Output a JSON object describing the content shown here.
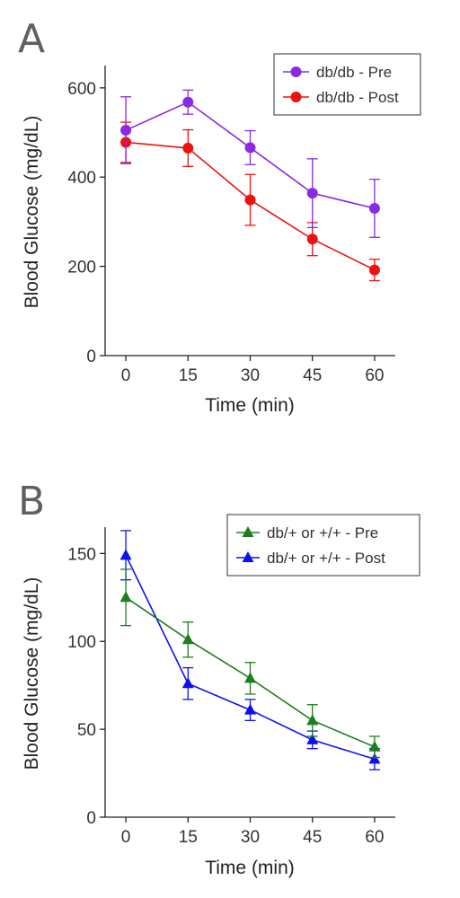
{
  "chart_data": [
    {
      "panel": "A",
      "type": "line",
      "xlabel": "Time (min)",
      "ylabel": "Blood Glucose (mg/dL)",
      "x": [
        0,
        15,
        30,
        45,
        60
      ],
      "xticks": [
        "0",
        "15",
        "30",
        "45",
        "60"
      ],
      "xlim": [
        -5,
        65
      ],
      "yticks": [
        "0",
        "200",
        "400",
        "600"
      ],
      "ylim": [
        0,
        650
      ],
      "marker": "circle",
      "legend_position": "top-right",
      "grid": false,
      "series": [
        {
          "name": "db/db - Pre",
          "color": "#8a2be2",
          "values": [
            505,
            568,
            466,
            364,
            330
          ],
          "error": [
            75,
            27,
            38,
            77,
            65
          ]
        },
        {
          "name": "db/db - Post",
          "color": "#ee1111",
          "values": [
            478,
            465,
            349,
            261,
            192
          ],
          "error": [
            45,
            41,
            57,
            37,
            24
          ]
        }
      ]
    },
    {
      "panel": "B",
      "type": "line",
      "xlabel": "Time (min)",
      "ylabel": "Blood Glucose (mg/dL)",
      "x": [
        0,
        15,
        30,
        45,
        60
      ],
      "xticks": [
        "0",
        "15",
        "30",
        "45",
        "60"
      ],
      "xlim": [
        -5,
        65
      ],
      "yticks": [
        "0",
        "50",
        "100",
        "150"
      ],
      "ylim": [
        0,
        165
      ],
      "marker": "triangle",
      "legend_position": "top-right",
      "grid": false,
      "series": [
        {
          "name": "db/+ or +/+ - Pre",
          "color": "#1e7d1e",
          "values": [
            125,
            101,
            79,
            55,
            40
          ],
          "error": [
            16,
            10,
            9,
            9,
            6
          ]
        },
        {
          "name": "db/+ or +/+ - Post",
          "color": "#1010ee",
          "values": [
            149,
            76,
            61,
            44,
            33
          ],
          "error": [
            14,
            9,
            6,
            5,
            6
          ]
        }
      ]
    }
  ]
}
